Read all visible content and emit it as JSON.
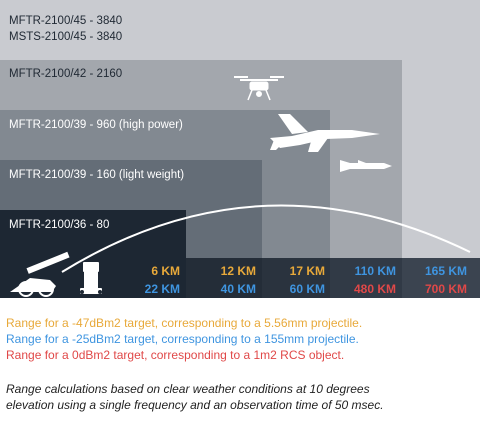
{
  "bands": [
    {
      "label": "MFTR-2100/45 - 3840"
    },
    {
      "label": "MSTS-2100/45 - 3840"
    },
    {
      "label": "MFTR-2100/42 - 2160"
    },
    {
      "label": "MFTR-2100/39 - 960 (high power)"
    },
    {
      "label": "MFTR-2100/39 - 160 (light weight)"
    },
    {
      "label": "MFTR-2100/36 - 80"
    }
  ],
  "ranges": {
    "orange": [
      "6 KM",
      "12 KM",
      "17 KM",
      "110 KM",
      "165 KM"
    ],
    "blue": [
      "22 KM",
      "40 KM",
      "60 KM",
      "110 KM",
      "165 KM"
    ],
    "red": [
      "480 KM",
      "700 KM"
    ]
  },
  "legend": [
    {
      "text": "Range for a -47dBm2 target, corresponding to a 5.56mm projectile.",
      "color": "#e8a93a"
    },
    {
      "text": "Range for a -25dBm2 target, corresponding to a 155mm projectile.",
      "color": "#3f95e0"
    },
    {
      "text": "Range for a 0dBm2 target, corresponding to a 1m2 RCS object.",
      "color": "#e04848"
    }
  ],
  "note": [
    "Range calculations based on clear weather conditions at 10 degrees",
    "elevation using a single frequency and an observation time of 50 msec."
  ],
  "colors": {
    "band1": "#c9cbd0",
    "band2": "#a3a7ad",
    "band3": "#828991",
    "band4": "#646d77",
    "band5": "#454e59",
    "band6": "#1d2733",
    "orange": "#e8a93a",
    "blue": "#3f95e0",
    "red": "#e04848"
  },
  "icons": [
    "cannon-icon",
    "radar-icon",
    "drone-icon",
    "fighter-jet-icon",
    "missile-icon"
  ]
}
